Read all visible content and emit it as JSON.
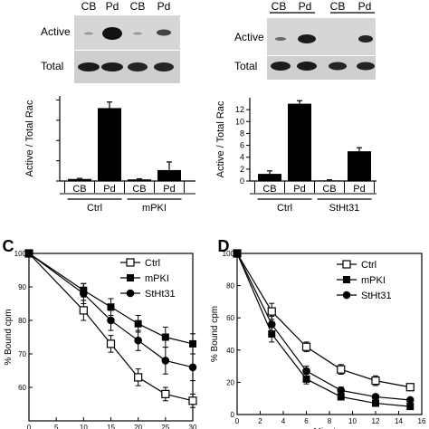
{
  "chart_data": [
    {
      "id": "blot-left",
      "type": "other",
      "description": "western blot",
      "column_labels": [
        "CB",
        "Pd",
        "CB",
        "Pd"
      ],
      "row_labels": [
        "Active",
        "Total"
      ]
    },
    {
      "id": "blot-right",
      "type": "other",
      "description": "western blot",
      "column_labels": [
        "CB",
        "Pd",
        "CB",
        "Pd"
      ],
      "row_labels": [
        "Active",
        "Total"
      ]
    },
    {
      "id": "bar-left",
      "type": "bar",
      "title": "",
      "xlabel": "",
      "ylabel": "Active / Total Rac",
      "categories": [
        "CB",
        "Pd",
        "CB",
        "Pd"
      ],
      "groups": [
        "Ctrl",
        "mPKI"
      ],
      "values": [
        0.5,
        18,
        0.4,
        2.7
      ],
      "errors": [
        0.15,
        1.5,
        0.15,
        2.0
      ],
      "ylim": [
        0,
        21
      ],
      "yticks": []
    },
    {
      "id": "bar-right",
      "type": "bar",
      "title": "",
      "xlabel": "",
      "ylabel": "Active / Total Rac",
      "categories": [
        "CB",
        "Pd",
        "CB",
        "Pd"
      ],
      "groups": [
        "Ctrl",
        "StHt31"
      ],
      "values": [
        1.2,
        13,
        0.1,
        5
      ],
      "errors": [
        0.5,
        0.5,
        0.1,
        0.6
      ],
      "ylim": [
        0,
        14
      ],
      "yticks": [
        "0",
        "2",
        "4",
        "6",
        "8",
        "10",
        "12"
      ]
    },
    {
      "id": "line-C",
      "panel_label": "C",
      "type": "line",
      "title": "",
      "xlabel": "",
      "ylabel": "% Bound cpm",
      "xlim": [
        0,
        30
      ],
      "ylim": [
        50,
        100
      ],
      "xticks": [
        "0",
        "5",
        "10",
        "15",
        "20",
        "25",
        "30"
      ],
      "yticks": [
        "60",
        "70",
        "80",
        "90",
        "100"
      ],
      "legend": "top-right",
      "series": [
        {
          "name": "Ctrl",
          "marker": "square-open",
          "x": [
            0,
            10,
            15,
            20,
            25,
            30
          ],
          "y": [
            100,
            83,
            73,
            63,
            58,
            56
          ],
          "err": [
            0,
            3,
            2.5,
            2.5,
            2,
            2
          ]
        },
        {
          "name": "mPKI",
          "marker": "square-filled",
          "x": [
            0,
            10,
            15,
            20,
            25,
            30
          ],
          "y": [
            100,
            89,
            84,
            79,
            75,
            73
          ],
          "err": [
            0,
            2,
            2.5,
            2.5,
            3,
            3
          ]
        },
        {
          "name": "StHt31",
          "marker": "circle-filled",
          "x": [
            0,
            10,
            15,
            20,
            25,
            30
          ],
          "y": [
            100,
            88,
            80,
            74,
            68,
            66
          ],
          "err": [
            0,
            3,
            3,
            3,
            4,
            4
          ]
        }
      ]
    },
    {
      "id": "line-D",
      "panel_label": "D",
      "type": "line",
      "title": "",
      "xlabel": "Minutes",
      "ylabel": "% Bound cpm",
      "xlim": [
        0,
        16
      ],
      "ylim": [
        0,
        100
      ],
      "xticks": [
        "0",
        "2",
        "4",
        "6",
        "8",
        "10",
        "12",
        "14",
        "16"
      ],
      "yticks": [
        "0",
        "20",
        "40",
        "60",
        "80",
        "100"
      ],
      "legend": "top-right",
      "series": [
        {
          "name": "Ctrl",
          "marker": "square-open",
          "x": [
            0,
            3,
            6,
            9,
            12,
            15
          ],
          "y": [
            100,
            64,
            42,
            28,
            21,
            17
          ],
          "err": [
            0,
            5,
            3,
            3,
            3,
            2
          ]
        },
        {
          "name": "mPKI",
          "marker": "square-filled",
          "x": [
            0,
            3,
            6,
            9,
            12,
            15
          ],
          "y": [
            100,
            50,
            22,
            11,
            7,
            5
          ],
          "err": [
            0,
            5,
            3,
            2,
            1,
            1
          ]
        },
        {
          "name": "StHt31",
          "marker": "circle-filled",
          "x": [
            0,
            3,
            6,
            9,
            12,
            15
          ],
          "y": [
            100,
            56,
            27,
            15,
            11,
            9
          ],
          "err": [
            0,
            5,
            3,
            2,
            1,
            1
          ]
        }
      ]
    }
  ]
}
